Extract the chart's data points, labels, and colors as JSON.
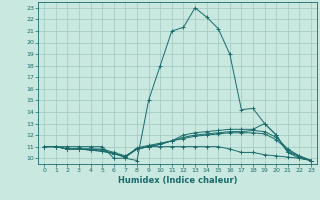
{
  "bg_color": "#c8e8e0",
  "grid_color": "#a0c8c0",
  "line_color": "#1a6b6b",
  "marker": "+",
  "xlabel": "Humidex (Indice chaleur)",
  "xlim": [
    -0.5,
    23.5
  ],
  "ylim": [
    9.5,
    23.5
  ],
  "xticks": [
    0,
    1,
    2,
    3,
    4,
    5,
    6,
    7,
    8,
    9,
    10,
    11,
    12,
    13,
    14,
    15,
    16,
    17,
    18,
    19,
    20,
    21,
    22,
    23
  ],
  "yticks": [
    10,
    11,
    12,
    13,
    14,
    15,
    16,
    17,
    18,
    19,
    20,
    21,
    22,
    23
  ],
  "series": [
    {
      "x": [
        0,
        1,
        2,
        3,
        4,
        5,
        6,
        7,
        8,
        9,
        10,
        11,
        12,
        13,
        14,
        15,
        16,
        17,
        18,
        19,
        20,
        21,
        22,
        23
      ],
      "y": [
        11,
        11,
        11,
        11,
        11,
        11,
        10,
        10,
        9.8,
        15,
        18,
        21,
        21.3,
        23,
        22.2,
        21.2,
        19,
        14.2,
        14.3,
        13,
        12,
        10.5,
        10,
        9.8
      ]
    },
    {
      "x": [
        0,
        1,
        2,
        3,
        4,
        5,
        6,
        7,
        8,
        9,
        10,
        11,
        12,
        13,
        14,
        15,
        16,
        17,
        18,
        19,
        20,
        21,
        22,
        23
      ],
      "y": [
        11,
        11,
        10.8,
        10.8,
        10.8,
        10.8,
        10.5,
        10.2,
        10.8,
        11,
        11.2,
        11.5,
        12,
        12.2,
        12.3,
        12.4,
        12.5,
        12.5,
        12.5,
        13,
        12,
        10.5,
        10.2,
        9.8
      ]
    },
    {
      "x": [
        0,
        1,
        2,
        3,
        4,
        5,
        6,
        7,
        8,
        9,
        10,
        11,
        12,
        13,
        14,
        15,
        16,
        17,
        18,
        19,
        20,
        21,
        22,
        23
      ],
      "y": [
        11,
        11,
        10.8,
        10.8,
        10.8,
        10.7,
        10.4,
        10.1,
        10.8,
        11,
        11.2,
        11.5,
        11.8,
        12,
        12.1,
        12.2,
        12.3,
        12.3,
        12.4,
        12.3,
        11.8,
        10.8,
        10.2,
        9.8
      ]
    },
    {
      "x": [
        0,
        1,
        2,
        3,
        4,
        5,
        6,
        7,
        8,
        9,
        10,
        11,
        12,
        13,
        14,
        15,
        16,
        17,
        18,
        19,
        20,
        21,
        22,
        23
      ],
      "y": [
        11,
        11,
        10.8,
        10.8,
        10.7,
        10.6,
        10.4,
        10.1,
        10.9,
        11.1,
        11.3,
        11.5,
        11.7,
        11.9,
        12.0,
        12.1,
        12.2,
        12.2,
        12.2,
        12.1,
        11.6,
        10.7,
        10.1,
        9.8
      ]
    },
    {
      "x": [
        0,
        1,
        2,
        3,
        4,
        5,
        6,
        7,
        8,
        9,
        10,
        11,
        12,
        13,
        14,
        15,
        16,
        17,
        18,
        19,
        20,
        21,
        22,
        23
      ],
      "y": [
        11,
        11,
        10.8,
        10.8,
        10.7,
        10.6,
        10.4,
        10.1,
        10.8,
        11.0,
        11.0,
        11.0,
        11.0,
        11.0,
        11.0,
        11.0,
        10.8,
        10.5,
        10.5,
        10.3,
        10.2,
        10.1,
        10.0,
        9.8
      ]
    }
  ]
}
